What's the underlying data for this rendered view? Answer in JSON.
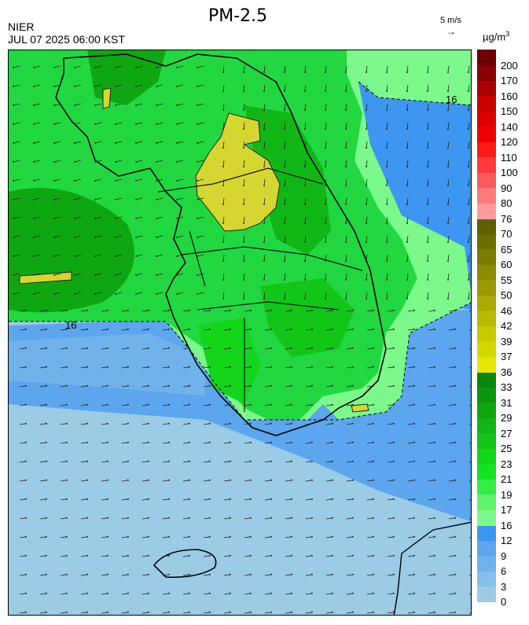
{
  "header": {
    "title": "PM-2.5",
    "agency": "NIER",
    "datetime": "JUL 07 2025 06:00 KST",
    "wind_scale_label": "5 m/s",
    "wind_scale_arrow": "→",
    "unit": "µg/m",
    "unit_sup": "3"
  },
  "map": {
    "contour_label": "16",
    "regions": {
      "west_sea_green": "#00c830",
      "peninsula_green": "#21d841",
      "mountain_dark_green": "#0aa81e",
      "high_concentration_yellow": "#d6d631",
      "sea_blue": "#4aa0ea",
      "sea_light_blue": "#9ccbe6"
    }
  },
  "colorbar": {
    "labels": [
      "0",
      "3",
      "6",
      "9",
      "12",
      "16",
      "17",
      "19",
      "21",
      "23",
      "25",
      "27",
      "29",
      "31",
      "33",
      "36",
      "37",
      "39",
      "42",
      "46",
      "50",
      "55",
      "60",
      "65",
      "70",
      "76",
      "80",
      "90",
      "100",
      "110",
      "120",
      "140",
      "150",
      "160",
      "170",
      "200"
    ],
    "colors": [
      "#9ccbe6",
      "#85bfe9",
      "#6fb2ec",
      "#5ba6ef",
      "#3d96f0",
      "#7cf98b",
      "#5ff46a",
      "#36ec45",
      "#14e21e",
      "#13d61a",
      "#12c617",
      "#10b714",
      "#0ea711",
      "#0b960e",
      "#08870b",
      "#e6e600",
      "#d7d700",
      "#c8c800",
      "#b9b900",
      "#aaaa00",
      "#9b9b00",
      "#8c8c00",
      "#7d7d00",
      "#6e6e00",
      "#5f5f00",
      "#ff9b9b",
      "#ff7b7b",
      "#ff5a5a",
      "#ff3a3a",
      "#ff1a1a",
      "#f00000",
      "#dc0000",
      "#c80000",
      "#aa0000",
      "#8b0000",
      "#6e0000"
    ]
  }
}
